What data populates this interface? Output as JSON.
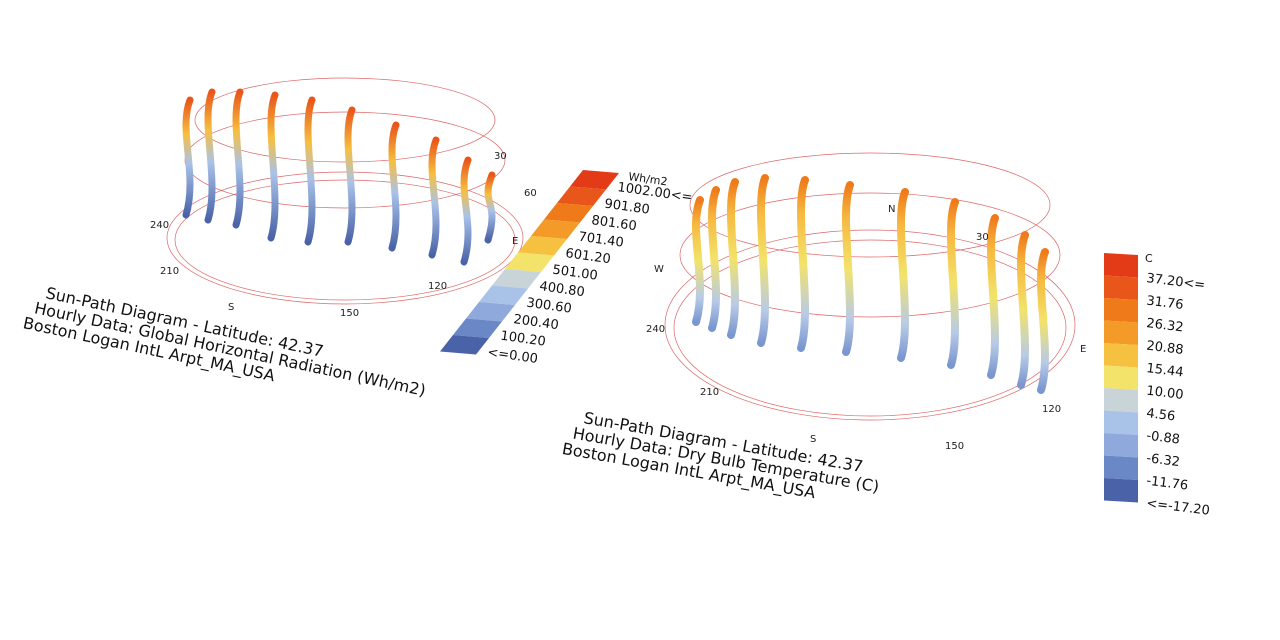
{
  "left": {
    "title_lines": [
      "Sun-Path Diagram - Latitude: 42.37",
      "Hourly Data: Global Horizontal Radiation (Wh/m2)",
      "Boston Logan IntL Arpt_MA_USA"
    ],
    "legend": {
      "unit": "Wh/m2",
      "labels": [
        "1002.00<=",
        "901.80",
        "801.60",
        "701.40",
        "601.20",
        "501.00",
        "400.80",
        "300.60",
        "200.40",
        "100.20",
        "<=0.00"
      ]
    },
    "compass": [
      "240",
      "210",
      "S",
      "150",
      "120",
      "E",
      "60",
      "30"
    ]
  },
  "right": {
    "title_lines": [
      "Sun-Path Diagram - Latitude: 42.37",
      "Hourly Data: Dry Bulb Temperature (C)",
      "Boston Logan IntL Arpt_MA_USA"
    ],
    "legend": {
      "unit": "C",
      "labels": [
        "37.20<=",
        "31.76",
        "26.32",
        "20.88",
        "15.44",
        "10.00",
        "4.56",
        "-0.88",
        "-6.32",
        "-11.76",
        "<=-17.20"
      ]
    },
    "compass": [
      "W",
      "240",
      "210",
      "S",
      "150",
      "120",
      "E",
      "30",
      "N"
    ]
  }
}
